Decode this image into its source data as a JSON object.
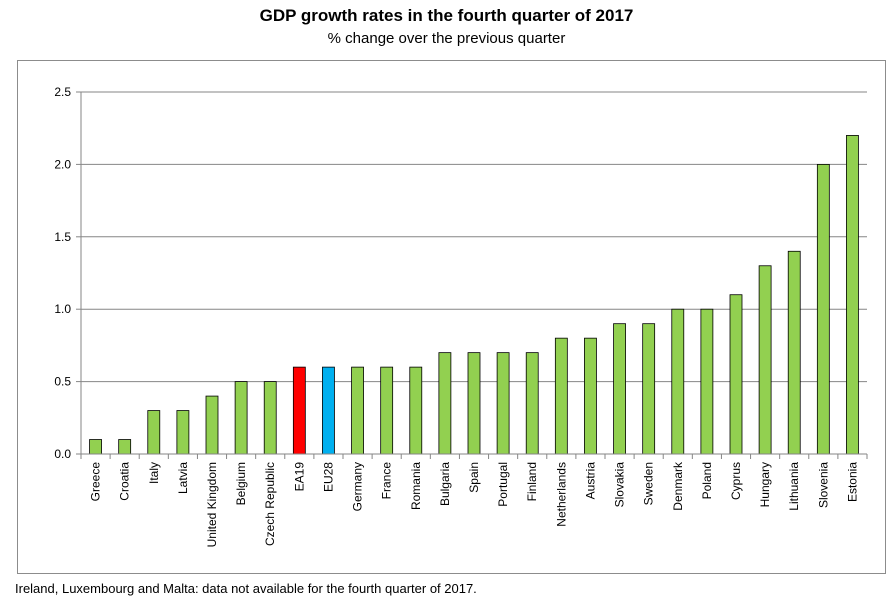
{
  "chart_data": {
    "type": "bar",
    "title": "GDP growth rates in the fourth quarter of 2017",
    "subtitle": "% change over the previous quarter",
    "categories": [
      "Greece",
      "Croatia",
      "Italy",
      "Latvia",
      "United Kingdom",
      "Belgium",
      "Czech Republic",
      "EA19",
      "EU28",
      "Germany",
      "France",
      "Romania",
      "Bulgaria",
      "Spain",
      "Portugal",
      "Finland",
      "Netherlands",
      "Austria",
      "Slovakia",
      "Sweden",
      "Denmark",
      "Poland",
      "Cyprus",
      "Hungary",
      "Lithuania",
      "Slovenia",
      "Estonia"
    ],
    "values": [
      0.1,
      0.1,
      0.3,
      0.3,
      0.4,
      0.5,
      0.5,
      0.6,
      0.6,
      0.6,
      0.6,
      0.6,
      0.7,
      0.7,
      0.7,
      0.7,
      0.8,
      0.8,
      0.9,
      0.9,
      1.0,
      1.0,
      1.1,
      1.3,
      1.4,
      2.0,
      2.2
    ],
    "bar_colors": {
      "default": "#92d050",
      "EA19": "#ff0000",
      "EU28": "#00b0f0"
    },
    "ylim": [
      0,
      2.5
    ],
    "yticks": [
      "0.0",
      "0.5",
      "1.0",
      "1.5",
      "2.0",
      "2.5"
    ],
    "grid": true,
    "xlabel": "",
    "ylabel": ""
  },
  "footnote": "Ireland, Luxembourg and Malta: data not available for the fourth quarter of 2017."
}
